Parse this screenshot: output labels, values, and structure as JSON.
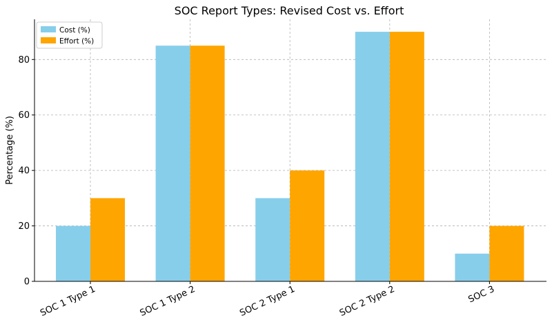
{
  "chart_data": {
    "type": "bar",
    "title": "SOC Report Types: Revised Cost vs. Effort",
    "xlabel": "",
    "ylabel": "Percentage (%)",
    "categories": [
      "SOC 1 Type 1",
      "SOC 1 Type 2",
      "SOC 2 Type 1",
      "SOC 2 Type 2",
      "SOC 3"
    ],
    "series": [
      {
        "name": "Cost (%)",
        "values": [
          20,
          85,
          30,
          90,
          10
        ],
        "color": "#87CEEB"
      },
      {
        "name": "Effort (%)",
        "values": [
          30,
          85,
          40,
          90,
          20
        ],
        "color": "#FFA500"
      }
    ],
    "ylim": [
      0,
      94.5
    ],
    "yticks": [
      0,
      20,
      40,
      60,
      80
    ],
    "grid": true,
    "legend": "top-left"
  }
}
